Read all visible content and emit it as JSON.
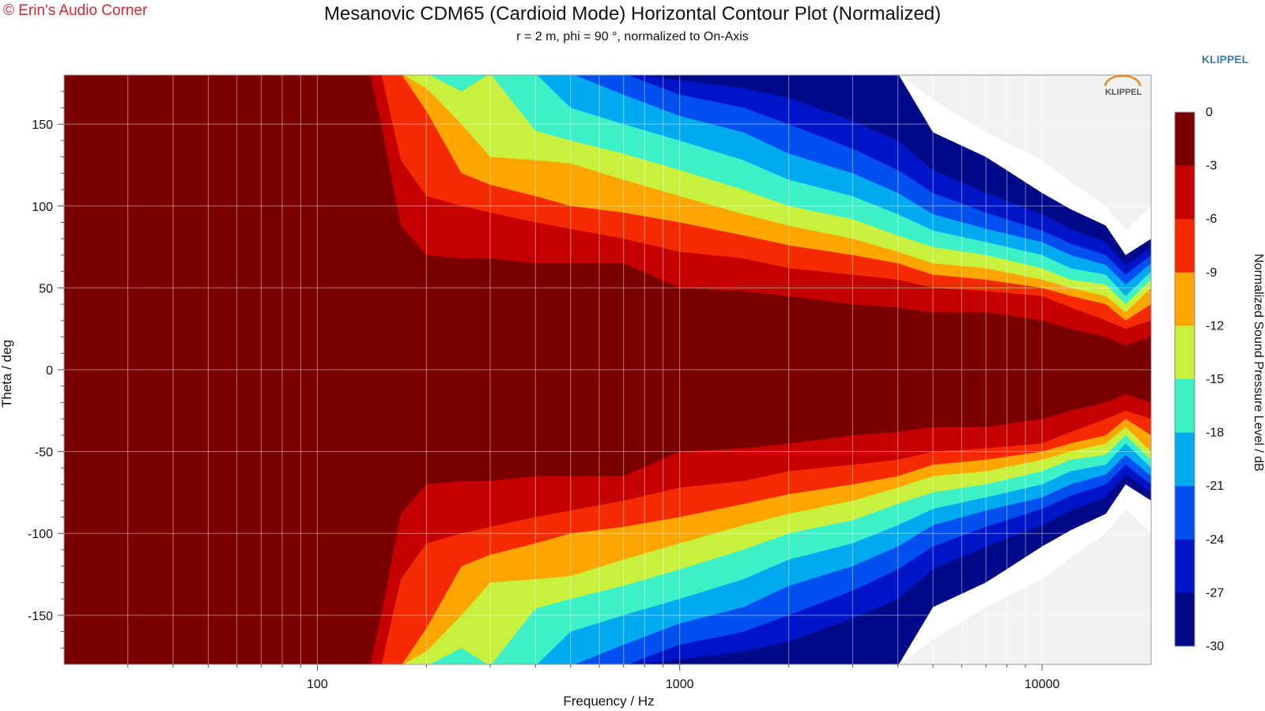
{
  "header": {
    "copyright": "© Erin's Audio Corner",
    "title": "Mesanovic CDM65 (Cardioid Mode) Horizontal Contour Plot (Normalized)",
    "subtitle": "r = 2 m, phi = 90 °, normalized to On-Axis",
    "brand": "KLIPPEL",
    "plot_logo": "KLIPPEL"
  },
  "chart_data": {
    "type": "heatmap",
    "title": "Mesanovic CDM65 (Cardioid Mode) Horizontal Contour Plot (Normalized)",
    "subtitle": "r = 2 m, phi = 90 °, normalized to On-Axis",
    "xlabel": "Frequency / Hz",
    "ylabel": "Theta / deg",
    "x_scale": "log",
    "xlim": [
      20,
      20000
    ],
    "ylim": [
      -180,
      180
    ],
    "x_ticks": [
      100,
      1000,
      10000
    ],
    "x_tick_labels": [
      "100",
      "1000",
      "10000"
    ],
    "y_ticks": [
      150,
      100,
      50,
      0,
      -50,
      -100,
      -150
    ],
    "y_tick_labels": [
      "150",
      "100",
      "50",
      "0",
      "-50",
      "-100",
      "-150"
    ],
    "grid": true,
    "colorbar": {
      "label": "Normalized Sound Pressure Level / dB",
      "levels": [
        0,
        -3,
        -6,
        -9,
        -12,
        -15,
        -18,
        -21,
        -24,
        -27,
        -30
      ],
      "level_labels": [
        "0",
        "-3",
        "-6",
        "-9",
        "-12",
        "-15",
        "-18",
        "-21",
        "-24",
        "-27",
        "-30"
      ],
      "colors": [
        "#7a0000",
        "#c40000",
        "#f52a00",
        "#ffa500",
        "#c8f03c",
        "#3cf0c8",
        "#00aaf0",
        "#0050f0",
        "#0014c8",
        "#000a88"
      ],
      "below_range_color": "#ffffff"
    },
    "contour_half_width_deg": {
      "frequency_hz": [
        20,
        140,
        150,
        170,
        200,
        250,
        300,
        400,
        500,
        700,
        1000,
        1500,
        2000,
        3000,
        4000,
        5000,
        7000,
        10000,
        12000,
        15000,
        17000,
        20000
      ],
      "level_0_to_-3": [
        181,
        181,
        150,
        88,
        70,
        68,
        68,
        65,
        65,
        65,
        50,
        48,
        45,
        40,
        38,
        35,
        35,
        30,
        25,
        20,
        15,
        20
      ],
      "level_-3_to_-6": [
        181,
        181,
        181,
        128,
        106,
        100,
        96,
        90,
        86,
        80,
        72,
        68,
        62,
        58,
        55,
        50,
        48,
        45,
        38,
        30,
        25,
        30
      ],
      "level_-6_to_-9": [
        181,
        181,
        181,
        181,
        158,
        120,
        113,
        106,
        100,
        96,
        90,
        82,
        76,
        70,
        65,
        58,
        55,
        50,
        45,
        40,
        30,
        40
      ],
      "level_-9_to_-12": [
        181,
        181,
        181,
        181,
        172,
        150,
        130,
        128,
        126,
        116,
        106,
        95,
        88,
        80,
        72,
        65,
        62,
        55,
        50,
        45,
        35,
        50
      ],
      "level_-12_to_-15": [
        181,
        181,
        181,
        181,
        181,
        170,
        181,
        146,
        140,
        132,
        122,
        110,
        100,
        92,
        82,
        75,
        70,
        62,
        55,
        52,
        40,
        55
      ],
      "level_-15_to_-18": [
        181,
        181,
        181,
        181,
        181,
        181,
        181,
        181,
        160,
        150,
        140,
        128,
        116,
        106,
        95,
        85,
        78,
        70,
        62,
        58,
        45,
        60
      ],
      "level_-18_to_-21": [
        181,
        181,
        181,
        181,
        181,
        181,
        181,
        181,
        181,
        168,
        155,
        145,
        132,
        120,
        108,
        95,
        86,
        78,
        70,
        64,
        52,
        65
      ],
      "level_-21_to_-24": [
        181,
        181,
        181,
        181,
        181,
        181,
        181,
        181,
        181,
        181,
        168,
        160,
        150,
        135,
        122,
        108,
        96,
        85,
        77,
        70,
        58,
        70
      ],
      "level_-24_to_-27": [
        181,
        181,
        181,
        181,
        181,
        181,
        181,
        181,
        181,
        181,
        177,
        172,
        166,
        152,
        140,
        122,
        108,
        95,
        86,
        78,
        64,
        75
      ],
      "level_-27_to_-30": [
        181,
        181,
        181,
        181,
        181,
        181,
        181,
        181,
        181,
        181,
        181,
        181,
        181,
        181,
        181,
        145,
        130,
        108,
        98,
        88,
        70,
        80
      ],
      "level_below_-30": [
        181,
        181,
        181,
        181,
        181,
        181,
        181,
        181,
        181,
        181,
        181,
        181,
        181,
        181,
        181,
        165,
        145,
        128,
        115,
        100,
        85,
        100
      ]
    }
  }
}
